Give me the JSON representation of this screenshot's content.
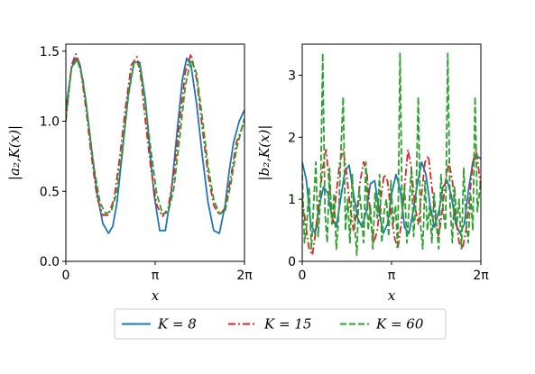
{
  "chart_data": [
    {
      "type": "line",
      "xlabel": "x",
      "ylabel": "|a₂,K(x)|",
      "xlim": [
        0,
        6.2832
      ],
      "ylim": [
        0,
        1.55
      ],
      "x_ticks": [
        {
          "value": 0,
          "label": "0"
        },
        {
          "value": 3.1416,
          "label": "π"
        },
        {
          "value": 6.2832,
          "label": "2π"
        }
      ],
      "y_ticks": [
        {
          "value": 0,
          "label": "0.0"
        },
        {
          "value": 0.5,
          "label": "0.5"
        },
        {
          "value": 1.0,
          "label": "1.0"
        },
        {
          "value": 1.5,
          "label": "1.5"
        }
      ],
      "series": [
        {
          "name": "K = 8",
          "color": "#1f77b4",
          "dash": "solid",
          "x": [
            0,
            0.2,
            0.35,
            0.5,
            0.7,
            0.9,
            1.1,
            1.3,
            1.5,
            1.65,
            1.8,
            2.0,
            2.2,
            2.4,
            2.6,
            2.8,
            2.95,
            3.1,
            3.3,
            3.5,
            3.7,
            3.9,
            4.1,
            4.25,
            4.4,
            4.6,
            4.8,
            5.0,
            5.2,
            5.4,
            5.6,
            5.75,
            5.9,
            6.1,
            6.28
          ],
          "y": [
            1.08,
            1.38,
            1.45,
            1.4,
            1.15,
            0.8,
            0.48,
            0.27,
            0.2,
            0.25,
            0.42,
            0.8,
            1.2,
            1.42,
            1.42,
            1.15,
            0.8,
            0.48,
            0.22,
            0.22,
            0.48,
            0.9,
            1.3,
            1.45,
            1.4,
            1.12,
            0.75,
            0.42,
            0.22,
            0.2,
            0.4,
            0.65,
            0.85,
            1.0,
            1.08
          ]
        },
        {
          "name": "K = 15",
          "color": "#d62728",
          "dash": "dashdot",
          "x": [
            0,
            0.2,
            0.35,
            0.5,
            0.7,
            0.9,
            1.1,
            1.3,
            1.5,
            1.7,
            1.9,
            2.1,
            2.3,
            2.5,
            2.65,
            2.8,
            3.0,
            3.2,
            3.4,
            3.6,
            3.8,
            4.0,
            4.2,
            4.4,
            4.6,
            4.8,
            5.0,
            5.2,
            5.4,
            5.6,
            5.8,
            6.0,
            6.28
          ],
          "y": [
            1.0,
            1.4,
            1.48,
            1.4,
            1.1,
            0.75,
            0.45,
            0.33,
            0.33,
            0.45,
            0.75,
            1.1,
            1.4,
            1.46,
            1.3,
            1.0,
            0.65,
            0.4,
            0.32,
            0.38,
            0.62,
            1.0,
            1.35,
            1.48,
            1.3,
            0.95,
            0.62,
            0.4,
            0.33,
            0.38,
            0.6,
            0.85,
            1.0
          ]
        },
        {
          "name": "K = 60",
          "color": "#2ca02c",
          "dash": "dashed",
          "x": [
            0,
            0.2,
            0.4,
            0.6,
            0.8,
            1.0,
            1.2,
            1.4,
            1.6,
            1.8,
            2.0,
            2.2,
            2.4,
            2.6,
            2.8,
            3.0,
            3.2,
            3.4,
            3.6,
            3.8,
            4.0,
            4.2,
            4.4,
            4.6,
            4.8,
            5.0,
            5.2,
            5.4,
            5.6,
            5.8,
            6.0,
            6.28
          ],
          "y": [
            1.02,
            1.38,
            1.44,
            1.3,
            0.98,
            0.66,
            0.42,
            0.34,
            0.36,
            0.5,
            0.82,
            1.18,
            1.42,
            1.4,
            1.12,
            0.78,
            0.48,
            0.34,
            0.35,
            0.52,
            0.88,
            1.25,
            1.44,
            1.34,
            1.02,
            0.68,
            0.44,
            0.34,
            0.36,
            0.55,
            0.8,
            1.02
          ]
        }
      ]
    },
    {
      "type": "line",
      "xlabel": "x",
      "ylabel": "|b₂,K(x)|",
      "xlim": [
        0,
        6.2832
      ],
      "ylim": [
        0,
        3.5
      ],
      "x_ticks": [
        {
          "value": 0,
          "label": "0"
        },
        {
          "value": 3.1416,
          "label": "π"
        },
        {
          "value": 6.2832,
          "label": "2π"
        }
      ],
      "y_ticks": [
        {
          "value": 0,
          "label": "0"
        },
        {
          "value": 1,
          "label": "1"
        },
        {
          "value": 2,
          "label": "2"
        },
        {
          "value": 3,
          "label": "3"
        }
      ],
      "series": [
        {
          "name": "K = 8",
          "color": "#1f77b4",
          "dash": "solid",
          "x": [
            0,
            0.15,
            0.3,
            0.45,
            0.6,
            0.75,
            0.9,
            1.05,
            1.2,
            1.35,
            1.5,
            1.65,
            1.8,
            1.95,
            2.1,
            2.25,
            2.4,
            2.55,
            2.7,
            2.85,
            3.0,
            3.15,
            3.3,
            3.45,
            3.6,
            3.75,
            3.9,
            4.05,
            4.2,
            4.35,
            4.5,
            4.65,
            4.8,
            4.95,
            5.1,
            5.25,
            5.4,
            5.55,
            5.7,
            5.85,
            6.0,
            6.15,
            6.28
          ],
          "y": [
            1.6,
            1.3,
            0.6,
            0.45,
            0.9,
            1.2,
            1.1,
            0.7,
            0.55,
            1.0,
            1.45,
            1.55,
            1.1,
            0.7,
            0.55,
            0.8,
            1.25,
            1.3,
            0.8,
            0.45,
            0.6,
            1.1,
            1.4,
            1.15,
            0.55,
            0.45,
            0.8,
            1.25,
            1.6,
            1.4,
            0.9,
            0.55,
            0.8,
            1.2,
            1.3,
            1.05,
            0.6,
            0.45,
            0.6,
            1.15,
            1.6,
            1.7,
            1.65
          ]
        },
        {
          "name": "K = 15",
          "color": "#d62728",
          "dash": "dashdot",
          "x": [
            0,
            0.12,
            0.24,
            0.36,
            0.48,
            0.6,
            0.72,
            0.84,
            0.96,
            1.08,
            1.2,
            1.32,
            1.44,
            1.56,
            1.68,
            1.8,
            1.92,
            2.04,
            2.16,
            2.28,
            2.4,
            2.52,
            2.64,
            2.76,
            2.88,
            3.0,
            3.12,
            3.24,
            3.36,
            3.48,
            3.6,
            3.72,
            3.84,
            3.96,
            4.08,
            4.2,
            4.32,
            4.44,
            4.56,
            4.68,
            4.8,
            4.92,
            5.04,
            5.16,
            5.28,
            5.4,
            5.52,
            5.64,
            5.76,
            5.88,
            6.0,
            6.12,
            6.28
          ],
          "y": [
            1.0,
            0.6,
            0.2,
            0.1,
            0.5,
            1.0,
            1.5,
            1.8,
            1.2,
            0.6,
            1.1,
            1.6,
            1.8,
            1.4,
            0.9,
            0.5,
            0.8,
            1.3,
            1.6,
            1.4,
            0.7,
            0.3,
            0.5,
            1.0,
            1.4,
            1.3,
            0.8,
            0.4,
            0.2,
            0.6,
            1.2,
            1.8,
            1.5,
            0.9,
            0.6,
            1.1,
            1.6,
            1.7,
            1.2,
            0.7,
            0.4,
            0.8,
            1.3,
            1.6,
            1.3,
            0.7,
            0.3,
            0.2,
            0.5,
            1.0,
            1.6,
            1.8,
            1.2
          ]
        },
        {
          "name": "K = 60",
          "color": "#2ca02c",
          "dash": "dashed",
          "x": [
            0,
            0.08,
            0.16,
            0.24,
            0.32,
            0.4,
            0.48,
            0.56,
            0.64,
            0.72,
            0.8,
            0.88,
            0.96,
            1.04,
            1.12,
            1.2,
            1.28,
            1.36,
            1.44,
            1.52,
            1.6,
            1.68,
            1.76,
            1.84,
            1.92,
            2.0,
            2.08,
            2.16,
            2.24,
            2.32,
            2.4,
            2.48,
            2.56,
            2.64,
            2.72,
            2.8,
            2.88,
            2.96,
            3.04,
            3.12,
            3.2,
            3.28,
            3.36,
            3.44,
            3.52,
            3.6,
            3.68,
            3.76,
            3.84,
            3.92,
            4.0,
            4.08,
            4.16,
            4.24,
            4.32,
            4.4,
            4.48,
            4.56,
            4.64,
            4.72,
            4.8,
            4.88,
            4.96,
            5.04,
            5.12,
            5.2,
            5.28,
            5.36,
            5.44,
            5.52,
            5.6,
            5.68,
            5.76,
            5.84,
            5.92,
            6.0,
            6.08,
            6.16,
            6.28
          ],
          "y": [
            1.4,
            0.3,
            0.6,
            1.2,
            0.2,
            0.9,
            1.6,
            0.4,
            1.0,
            3.35,
            0.8,
            0.3,
            1.5,
            0.6,
            1.1,
            0.2,
            0.7,
            1.8,
            2.65,
            0.5,
            1.0,
            0.3,
            1.4,
            0.6,
            0.1,
            1.2,
            0.8,
            0.3,
            1.6,
            0.5,
            0.9,
            0.2,
            1.1,
            0.7,
            1.4,
            0.3,
            0.8,
            1.0,
            0.4,
            1.3,
            0.6,
            0.9,
            0.2,
            3.35,
            0.7,
            1.2,
            0.3,
            0.9,
            1.5,
            0.4,
            1.0,
            2.65,
            0.6,
            0.2,
            1.3,
            0.5,
            0.9,
            0.3,
            1.1,
            0.6,
            0.2,
            1.4,
            0.8,
            0.5,
            3.35,
            0.9,
            0.3,
            1.2,
            0.6,
            1.0,
            0.2,
            1.5,
            0.7,
            0.3,
            1.1,
            0.5,
            2.65,
            0.8,
            1.3
          ]
        }
      ]
    }
  ],
  "legend": {
    "placement": "bottom-center",
    "entries": [
      {
        "label": "K = 8",
        "color": "#1f77b4",
        "dash": "solid"
      },
      {
        "label": "K = 15",
        "color": "#d62728",
        "dash": "dashdot"
      },
      {
        "label": "K = 60",
        "color": "#2ca02c",
        "dash": "dashed"
      }
    ]
  }
}
